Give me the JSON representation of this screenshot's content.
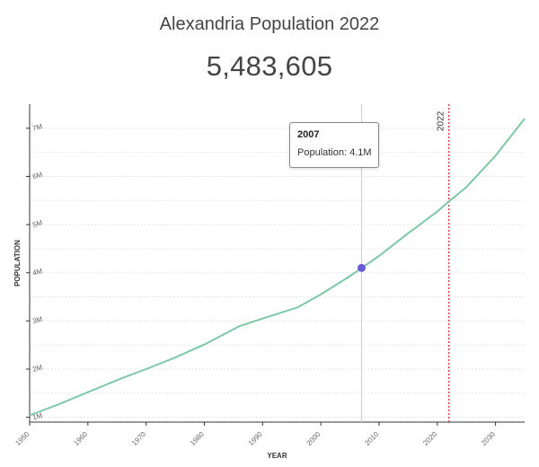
{
  "header": {
    "title": "Alexandria Population 2022",
    "value": "5,483,605"
  },
  "tooltip": {
    "year": "2007",
    "label": "Population:",
    "value": "4.1M"
  },
  "colors": {
    "line": "#7ec8a6",
    "marker_line": "#e04050",
    "hover_point": "#6b5bd8",
    "hover_line": "#cfcfcf",
    "grid": "#e6e6e6",
    "axis": "#333333"
  },
  "chart_data": {
    "type": "line",
    "title": "Alexandria Population 2022",
    "xlabel": "YEAR",
    "ylabel": "POPULATION",
    "xlim": [
      1950,
      2035
    ],
    "ylim": [
      0.9,
      7.5
    ],
    "x_ticks": [
      1950,
      1960,
      1970,
      1980,
      1990,
      2000,
      2010,
      2020,
      2030
    ],
    "y_ticks": [
      1,
      2,
      3,
      4,
      5,
      6,
      7
    ],
    "y_tick_labels": [
      "1M",
      "2M",
      "3M",
      "4M",
      "5M",
      "6M",
      "7M"
    ],
    "grid": true,
    "marker": {
      "x": 2022,
      "label": "2022"
    },
    "highlight": {
      "x": 2007,
      "y": 4.1
    },
    "series": [
      {
        "unit": "millions",
        "x": [
          1950,
          1955,
          1960,
          1966,
          1970,
          1975,
          1980,
          1986,
          1990,
          1996,
          2000,
          2005,
          2007,
          2010,
          2015,
          2020,
          2022,
          2025,
          2030,
          2035
        ],
        "y": [
          1.04,
          1.27,
          1.52,
          1.82,
          2.0,
          2.24,
          2.51,
          2.89,
          3.05,
          3.28,
          3.55,
          3.93,
          4.1,
          4.35,
          4.82,
          5.27,
          5.48,
          5.78,
          6.43,
          7.2
        ]
      }
    ]
  }
}
